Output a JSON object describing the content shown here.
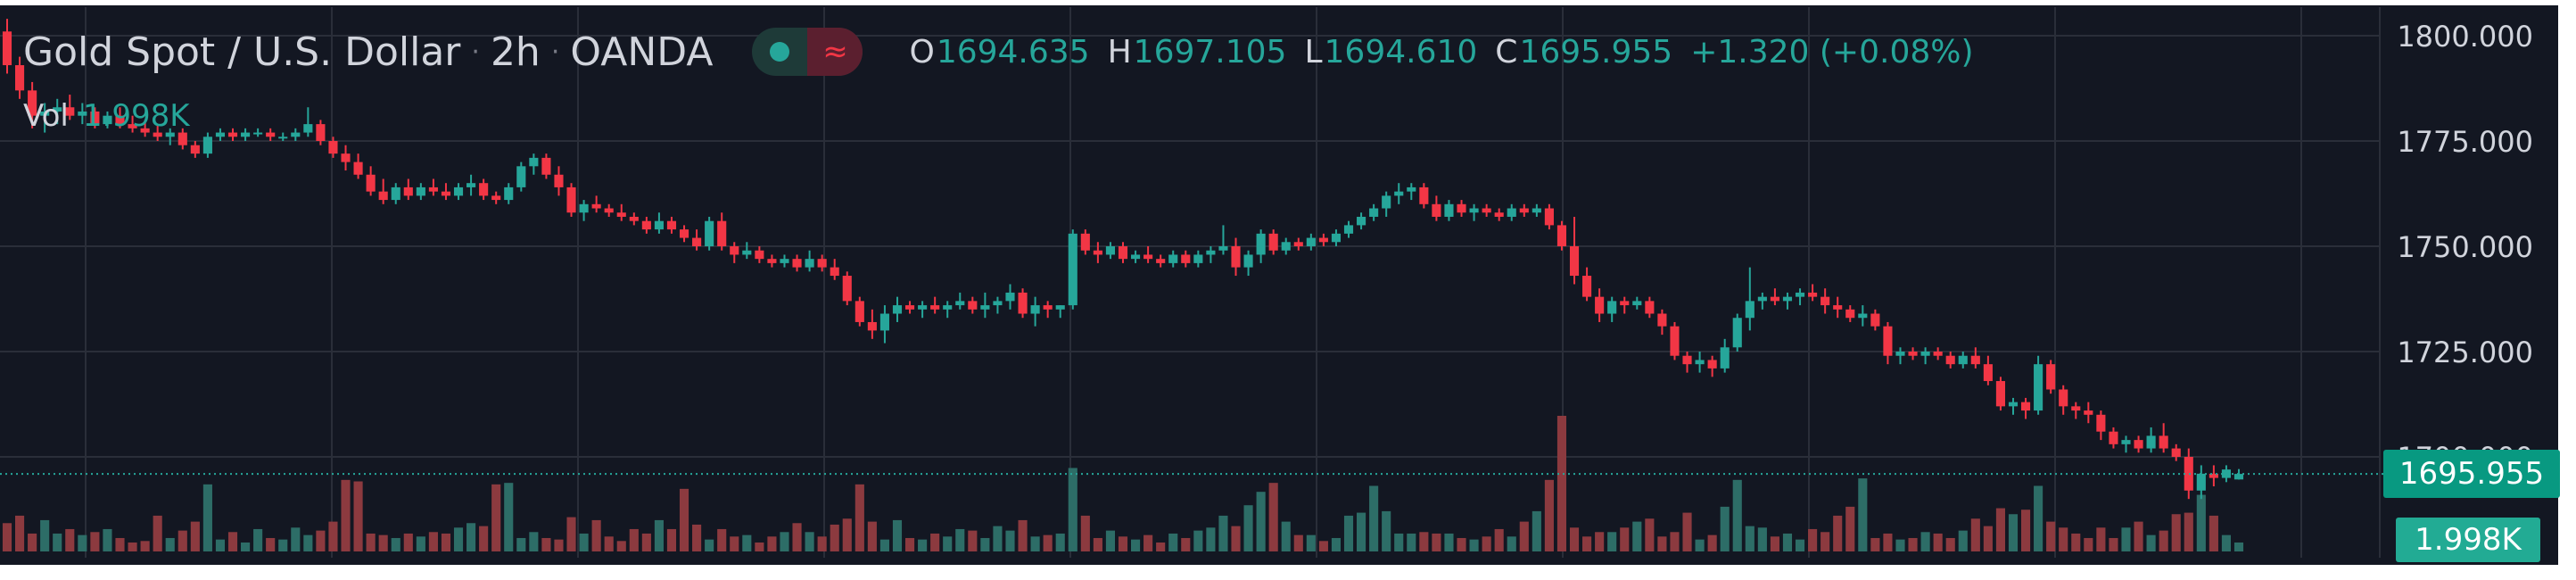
{
  "legend": {
    "symbol": "Gold Spot / U.S. Dollar",
    "interval": "2h",
    "exchange": "OANDA",
    "wave_icon": "≈",
    "open_label": "O",
    "open": "1694.635",
    "high_label": "H",
    "high": "1697.105",
    "low_label": "L",
    "low": "1694.610",
    "close_label": "C",
    "close": "1695.955",
    "change": "+1.320 (+0.08%)",
    "volume_label": "Vol",
    "volume": "1.998K"
  },
  "badges": {
    "last_price": "1695.955",
    "last_volume": "1.998K"
  },
  "colors": {
    "background": "#131722",
    "grid": "#2a2e39",
    "up": "#26a69a",
    "down": "#f23645",
    "volume_up": "#2d6d67",
    "volume_down": "#8c3a3f",
    "axis_text": "#d1d4dc"
  },
  "chart_data": {
    "type": "candlestick",
    "y_axis": {
      "ticks": [
        "1800.000",
        "1775.000",
        "1750.000",
        "1725.000",
        "1700.000"
      ],
      "range": [
        1684,
        1805
      ]
    },
    "last_price": 1695.955,
    "grid": true,
    "candles": [
      [
        1801,
        1804,
        1791,
        1793
      ],
      [
        1793,
        1795,
        1785,
        1787
      ],
      [
        1787,
        1789,
        1778,
        1781
      ],
      [
        1781,
        1784,
        1777,
        1782
      ],
      [
        1782,
        1785,
        1779,
        1783
      ],
      [
        1783,
        1786,
        1780,
        1781
      ],
      [
        1781,
        1784,
        1779,
        1782
      ],
      [
        1782,
        1783,
        1778,
        1779
      ],
      [
        1779,
        1782,
        1778,
        1781
      ],
      [
        1781,
        1783,
        1778,
        1779
      ],
      [
        1779,
        1781,
        1777,
        1778
      ],
      [
        1778,
        1780,
        1776,
        1777
      ],
      [
        1777,
        1779,
        1775,
        1776
      ],
      [
        1776,
        1778,
        1774,
        1777
      ],
      [
        1777,
        1778,
        1773,
        1774
      ],
      [
        1774,
        1775,
        1771,
        1772
      ],
      [
        1772,
        1777,
        1771,
        1776
      ],
      [
        1776,
        1778,
        1775,
        1777
      ],
      [
        1777,
        1778,
        1775,
        1776
      ],
      [
        1776,
        1778,
        1775,
        1777
      ],
      [
        1777,
        1778,
        1776,
        1777
      ],
      [
        1777,
        1778,
        1775,
        1776
      ],
      [
        1776,
        1777,
        1775,
        1776
      ],
      [
        1776,
        1778,
        1775,
        1777
      ],
      [
        1777,
        1783,
        1776,
        1779
      ],
      [
        1779,
        1780,
        1774,
        1775
      ],
      [
        1775,
        1776,
        1771,
        1772
      ],
      [
        1772,
        1774,
        1768,
        1770
      ],
      [
        1770,
        1772,
        1766,
        1767
      ],
      [
        1767,
        1769,
        1762,
        1763
      ],
      [
        1763,
        1766,
        1760,
        1761
      ],
      [
        1761,
        1765,
        1760,
        1764
      ],
      [
        1764,
        1766,
        1761,
        1762
      ],
      [
        1762,
        1765,
        1761,
        1764
      ],
      [
        1764,
        1766,
        1762,
        1763
      ],
      [
        1763,
        1765,
        1761,
        1762
      ],
      [
        1762,
        1765,
        1761,
        1764
      ],
      [
        1764,
        1767,
        1762,
        1765
      ],
      [
        1765,
        1766,
        1761,
        1762
      ],
      [
        1762,
        1763,
        1760,
        1761
      ],
      [
        1761,
        1765,
        1760,
        1764
      ],
      [
        1764,
        1770,
        1763,
        1769
      ],
      [
        1769,
        1772,
        1767,
        1771
      ],
      [
        1771,
        1772,
        1766,
        1767
      ],
      [
        1767,
        1769,
        1762,
        1764
      ],
      [
        1764,
        1765,
        1757,
        1758
      ],
      [
        1758,
        1761,
        1756,
        1760
      ],
      [
        1760,
        1762,
        1758,
        1759
      ],
      [
        1759,
        1760,
        1757,
        1758
      ],
      [
        1758,
        1760,
        1756,
        1757
      ],
      [
        1757,
        1758,
        1755,
        1756
      ],
      [
        1756,
        1757,
        1753,
        1754
      ],
      [
        1754,
        1758,
        1753,
        1756
      ],
      [
        1756,
        1757,
        1753,
        1754
      ],
      [
        1754,
        1755,
        1751,
        1752
      ],
      [
        1752,
        1754,
        1749,
        1750
      ],
      [
        1750,
        1757,
        1749,
        1756
      ],
      [
        1756,
        1758,
        1749,
        1750
      ],
      [
        1750,
        1751,
        1746,
        1748
      ],
      [
        1748,
        1751,
        1747,
        1749
      ],
      [
        1749,
        1750,
        1746,
        1747
      ],
      [
        1747,
        1748,
        1745,
        1746
      ],
      [
        1746,
        1748,
        1745,
        1747
      ],
      [
        1747,
        1748,
        1744,
        1745
      ],
      [
        1745,
        1749,
        1744,
        1747
      ],
      [
        1747,
        1748,
        1744,
        1745
      ],
      [
        1745,
        1747,
        1742,
        1743
      ],
      [
        1743,
        1744,
        1736,
        1737
      ],
      [
        1737,
        1738,
        1731,
        1732
      ],
      [
        1732,
        1735,
        1728,
        1730
      ],
      [
        1730,
        1736,
        1727,
        1734
      ],
      [
        1734,
        1738,
        1732,
        1736
      ],
      [
        1736,
        1737,
        1734,
        1735
      ],
      [
        1735,
        1737,
        1733,
        1736
      ],
      [
        1736,
        1738,
        1734,
        1735
      ],
      [
        1735,
        1737,
        1733,
        1736
      ],
      [
        1736,
        1739,
        1735,
        1737
      ],
      [
        1737,
        1738,
        1734,
        1735
      ],
      [
        1735,
        1739,
        1733,
        1736
      ],
      [
        1736,
        1738,
        1734,
        1737
      ],
      [
        1737,
        1741,
        1735,
        1739
      ],
      [
        1739,
        1740,
        1733,
        1734
      ],
      [
        1734,
        1738,
        1731,
        1736
      ],
      [
        1736,
        1737,
        1733,
        1735
      ],
      [
        1735,
        1736,
        1733,
        1736
      ],
      [
        1736,
        1754,
        1735,
        1753
      ],
      [
        1753,
        1754,
        1748,
        1749
      ],
      [
        1749,
        1751,
        1746,
        1748
      ],
      [
        1748,
        1751,
        1747,
        1750
      ],
      [
        1750,
        1751,
        1746,
        1747
      ],
      [
        1747,
        1749,
        1746,
        1748
      ],
      [
        1748,
        1750,
        1746,
        1747
      ],
      [
        1747,
        1748,
        1745,
        1746
      ],
      [
        1746,
        1749,
        1745,
        1748
      ],
      [
        1748,
        1749,
        1745,
        1746
      ],
      [
        1746,
        1749,
        1745,
        1748
      ],
      [
        1748,
        1750,
        1746,
        1749
      ],
      [
        1749,
        1755,
        1748,
        1750
      ],
      [
        1750,
        1752,
        1743,
        1745
      ],
      [
        1745,
        1749,
        1743,
        1748
      ],
      [
        1748,
        1754,
        1746,
        1753
      ],
      [
        1753,
        1754,
        1748,
        1749
      ],
      [
        1749,
        1752,
        1748,
        1751
      ],
      [
        1751,
        1752,
        1749,
        1750
      ],
      [
        1750,
        1753,
        1749,
        1752
      ],
      [
        1752,
        1753,
        1750,
        1751
      ],
      [
        1751,
        1754,
        1750,
        1753
      ],
      [
        1753,
        1756,
        1752,
        1755
      ],
      [
        1755,
        1758,
        1754,
        1757
      ],
      [
        1757,
        1760,
        1756,
        1759
      ],
      [
        1759,
        1763,
        1757,
        1762
      ],
      [
        1762,
        1765,
        1760,
        1763
      ],
      [
        1763,
        1765,
        1761,
        1764
      ],
      [
        1764,
        1765,
        1759,
        1760
      ],
      [
        1760,
        1762,
        1756,
        1757
      ],
      [
        1757,
        1761,
        1756,
        1760
      ],
      [
        1760,
        1761,
        1757,
        1758
      ],
      [
        1758,
        1760,
        1756,
        1759
      ],
      [
        1759,
        1760,
        1757,
        1758
      ],
      [
        1758,
        1759,
        1756,
        1757
      ],
      [
        1757,
        1760,
        1756,
        1759
      ],
      [
        1759,
        1760,
        1757,
        1758
      ],
      [
        1758,
        1760,
        1757,
        1759
      ],
      [
        1759,
        1760,
        1754,
        1755
      ],
      [
        1755,
        1756,
        1749,
        1750
      ],
      [
        1750,
        1757,
        1741,
        1743
      ],
      [
        1743,
        1745,
        1737,
        1738
      ],
      [
        1738,
        1740,
        1732,
        1734
      ],
      [
        1734,
        1738,
        1732,
        1737
      ],
      [
        1737,
        1738,
        1734,
        1736
      ],
      [
        1736,
        1738,
        1735,
        1737
      ],
      [
        1737,
        1738,
        1733,
        1734
      ],
      [
        1734,
        1735,
        1729,
        1731
      ],
      [
        1731,
        1732,
        1723,
        1724
      ],
      [
        1724,
        1725,
        1720,
        1722
      ],
      [
        1722,
        1725,
        1720,
        1723
      ],
      [
        1723,
        1724,
        1719,
        1721
      ],
      [
        1721,
        1728,
        1720,
        1726
      ],
      [
        1726,
        1734,
        1725,
        1733
      ],
      [
        1733,
        1745,
        1730,
        1737
      ],
      [
        1737,
        1739,
        1735,
        1738
      ],
      [
        1738,
        1740,
        1736,
        1737
      ],
      [
        1737,
        1739,
        1735,
        1738
      ],
      [
        1738,
        1740,
        1736,
        1739
      ],
      [
        1739,
        1741,
        1737,
        1738
      ],
      [
        1738,
        1740,
        1734,
        1736
      ],
      [
        1736,
        1738,
        1733,
        1735
      ],
      [
        1735,
        1736,
        1732,
        1733
      ],
      [
        1733,
        1736,
        1731,
        1734
      ],
      [
        1734,
        1735,
        1730,
        1731
      ],
      [
        1731,
        1732,
        1722,
        1724
      ],
      [
        1724,
        1726,
        1722,
        1725
      ],
      [
        1725,
        1726,
        1723,
        1724
      ],
      [
        1724,
        1726,
        1722,
        1725
      ],
      [
        1725,
        1726,
        1723,
        1724
      ],
      [
        1724,
        1725,
        1721,
        1722
      ],
      [
        1722,
        1725,
        1721,
        1724
      ],
      [
        1724,
        1726,
        1721,
        1722
      ],
      [
        1722,
        1724,
        1717,
        1718
      ],
      [
        1718,
        1719,
        1711,
        1712
      ],
      [
        1712,
        1714,
        1710,
        1713
      ],
      [
        1713,
        1714,
        1709,
        1711
      ],
      [
        1711,
        1724,
        1710,
        1722
      ],
      [
        1722,
        1723,
        1715,
        1716
      ],
      [
        1716,
        1717,
        1710,
        1712
      ],
      [
        1712,
        1713,
        1709,
        1711
      ],
      [
        1711,
        1713,
        1708,
        1710
      ],
      [
        1710,
        1711,
        1704,
        1706
      ],
      [
        1706,
        1707,
        1702,
        1703
      ],
      [
        1703,
        1705,
        1701,
        1704
      ],
      [
        1704,
        1705,
        1701,
        1702
      ],
      [
        1702,
        1707,
        1701,
        1705
      ],
      [
        1705,
        1708,
        1701,
        1702
      ],
      [
        1702,
        1703,
        1699,
        1700
      ],
      [
        1700,
        1702,
        1690,
        1692
      ],
      [
        1692,
        1698,
        1690,
        1696
      ],
      [
        1696,
        1698,
        1693,
        1695
      ],
      [
        1695,
        1698,
        1694,
        1697
      ],
      [
        1694.635,
        1697.105,
        1694.61,
        1695.955
      ]
    ],
    "volume": [
      19,
      24,
      12,
      21,
      12,
      15,
      11,
      13,
      15,
      9,
      6,
      7,
      24,
      9,
      14,
      20,
      45,
      8,
      13,
      6,
      15,
      9,
      8,
      16,
      11,
      14,
      20,
      48,
      47,
      12,
      11,
      9,
      12,
      10,
      13,
      12,
      16,
      19,
      17,
      45,
      46,
      9,
      13,
      9,
      8,
      23,
      12,
      21,
      10,
      7,
      15,
      12,
      21,
      15,
      42,
      18,
      8,
      15,
      10,
      11,
      6,
      10,
      13,
      19,
      13,
      10,
      18,
      22,
      45,
      20,
      8,
      21,
      9,
      8,
      12,
      10,
      15,
      14,
      9,
      17,
      14,
      21,
      10,
      11,
      12,
      56,
      24,
      9,
      14,
      10,
      8,
      11,
      6,
      12,
      9,
      14,
      16,
      24,
      17,
      31,
      40,
      46,
      20,
      11,
      11,
      7,
      9,
      24,
      26,
      44,
      27,
      12,
      12,
      13,
      12,
      12,
      9,
      8,
      10,
      15,
      10,
      20,
      27,
      48,
      91,
      16,
      10,
      13,
      13,
      16,
      20,
      22,
      10,
      13,
      26,
      8,
      11,
      30,
      48,
      17,
      16,
      10,
      12,
      8,
      15,
      13,
      24,
      30,
      49,
      9,
      12,
      8,
      9,
      13,
      12,
      9,
      14,
      22,
      17,
      29,
      25,
      28,
      44,
      20,
      16,
      12,
      9,
      16,
      9,
      16,
      20,
      11,
      14,
      25,
      26,
      38,
      24,
      11,
      6
    ]
  }
}
